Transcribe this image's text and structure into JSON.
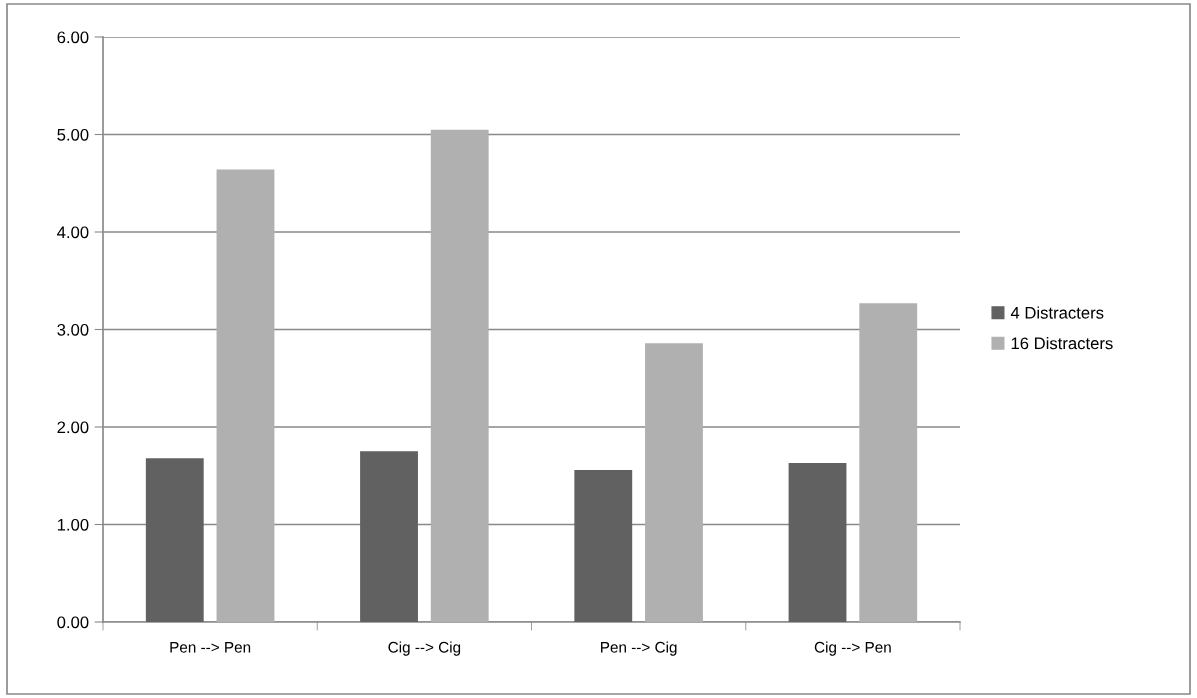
{
  "chart_data": {
    "type": "bar",
    "categories": [
      "Pen --> Pen",
      "Cig --> Cig",
      "Pen --> Cig",
      "Cig --> Pen"
    ],
    "series": [
      {
        "name": "4 Distracters",
        "color": "#616161",
        "values": [
          1.68,
          1.75,
          1.56,
          1.63
        ]
      },
      {
        "name": "16 Distracters",
        "color": "#b0b0b0",
        "values": [
          4.64,
          5.05,
          2.86,
          3.27
        ]
      }
    ],
    "ylim": [
      0,
      6
    ],
    "yticks": [
      {
        "value": 0,
        "label": "0.00"
      },
      {
        "value": 1,
        "label": "1.00"
      },
      {
        "value": 2,
        "label": "2.00"
      },
      {
        "value": 3,
        "label": "3.00"
      },
      {
        "value": 4,
        "label": "4.00"
      },
      {
        "value": 5,
        "label": "5.00"
      },
      {
        "value": 6,
        "label": "6.00"
      }
    ],
    "grid": "y",
    "legend": "right"
  }
}
